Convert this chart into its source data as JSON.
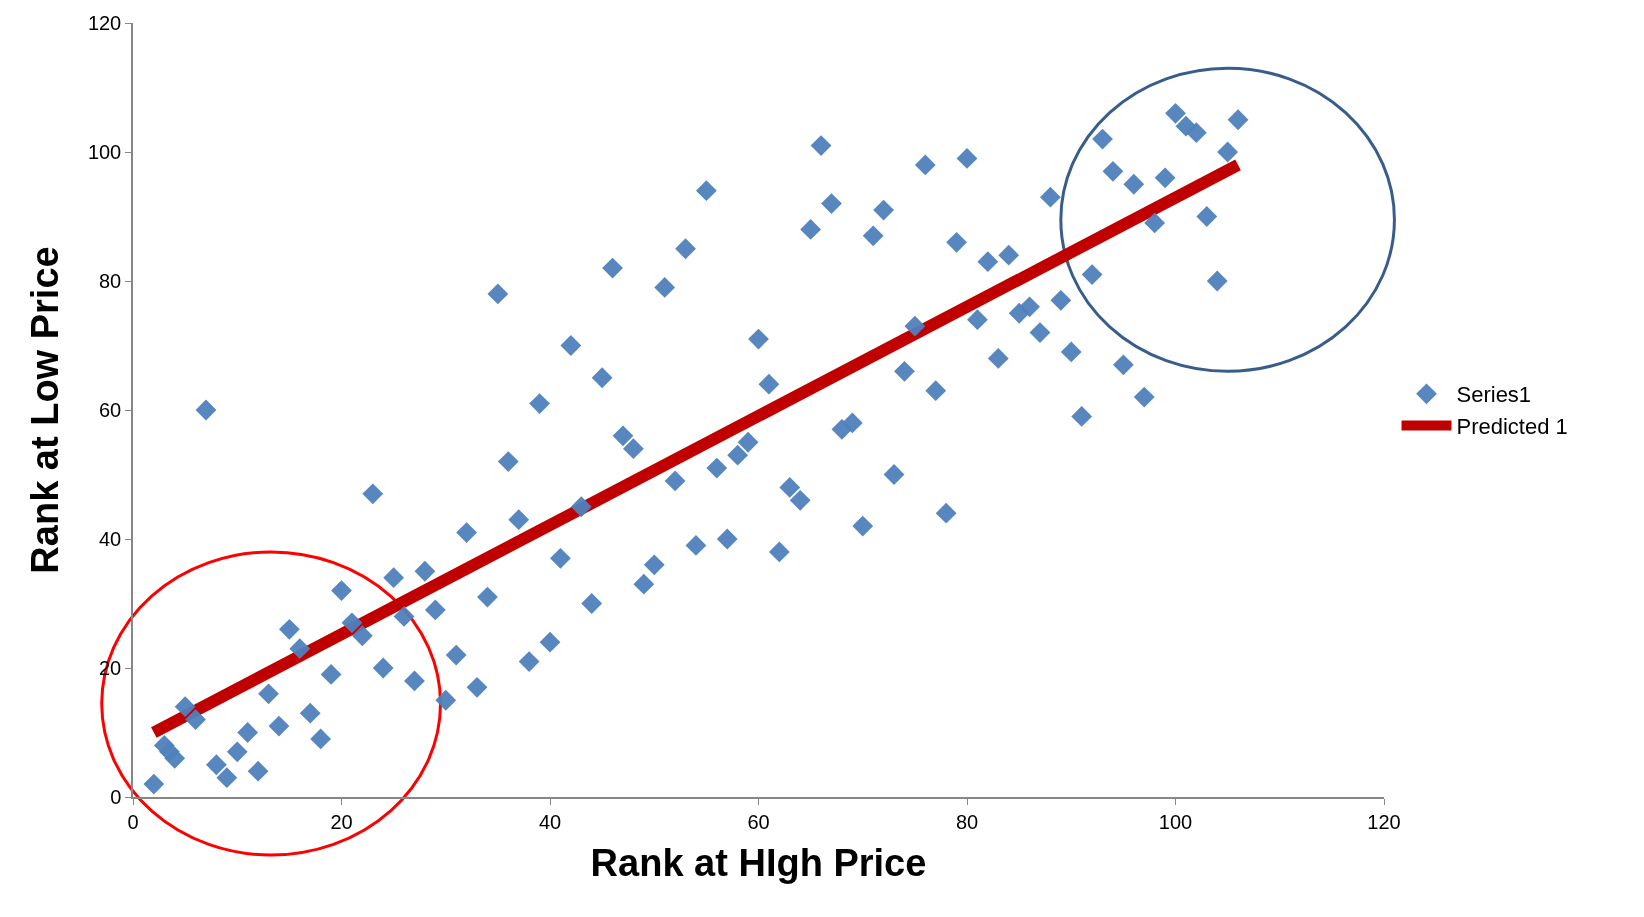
{
  "chart_data": {
    "type": "scatter",
    "xlabel": "Rank at HIgh Price",
    "ylabel": "Rank at Low Price",
    "xlim": [
      0,
      120
    ],
    "ylim": [
      0,
      120
    ],
    "xticks": [
      0,
      20,
      40,
      60,
      80,
      100,
      120
    ],
    "yticks": [
      0,
      20,
      40,
      60,
      80,
      100,
      120
    ],
    "grid": false,
    "legend": "right",
    "series": [
      {
        "name": "Series1",
        "marker": "diamond",
        "color": "#4f81bd",
        "x": [
          2,
          3,
          3.5,
          4,
          5,
          6,
          7,
          8,
          9,
          10,
          11,
          12,
          13,
          14,
          15,
          16,
          17,
          18,
          19,
          20,
          21,
          22,
          23,
          24,
          25,
          26,
          27,
          28,
          29,
          30,
          31,
          32,
          33,
          34,
          35,
          36,
          37,
          38,
          39,
          40,
          41,
          42,
          43,
          44,
          45,
          46,
          47,
          48,
          49,
          50,
          51,
          52,
          53,
          54,
          55,
          56,
          57,
          58,
          59,
          60,
          61,
          62,
          63,
          64,
          65,
          66,
          67,
          68,
          69,
          70,
          71,
          72,
          73,
          74,
          75,
          76,
          77,
          78,
          79,
          80,
          81,
          82,
          83,
          84,
          85,
          86,
          87,
          88,
          89,
          90,
          91,
          92,
          93,
          94,
          95,
          96,
          97,
          98,
          99,
          100,
          101,
          102,
          103,
          104,
          105,
          106
        ],
        "values": [
          2,
          8,
          7,
          6,
          14,
          12,
          60,
          5,
          3,
          7,
          10,
          4,
          16,
          11,
          26,
          23,
          13,
          9,
          19,
          32,
          27,
          25,
          47,
          20,
          34,
          28,
          18,
          35,
          29,
          15,
          22,
          41,
          17,
          31,
          78,
          52,
          43,
          21,
          61,
          24,
          37,
          70,
          45,
          30,
          65,
          82,
          56,
          54,
          33,
          36,
          79,
          49,
          85,
          39,
          94,
          51,
          40,
          53,
          55,
          71,
          64,
          38,
          48,
          46,
          88,
          101,
          92,
          57,
          58,
          42,
          87,
          91,
          50,
          66,
          73,
          98,
          63,
          44,
          86,
          99,
          74,
          83,
          68,
          84,
          75,
          76,
          72,
          93,
          77,
          69,
          59,
          81,
          102,
          97,
          67,
          95,
          62,
          89,
          96,
          106,
          104,
          103,
          90,
          80,
          100,
          105
        ]
      },
      {
        "name": "Predicted 1",
        "type": "line",
        "marker": "none",
        "line_style": "solid",
        "color": "#c00000",
        "x": [
          2,
          106
        ],
        "values": [
          10,
          98
        ]
      }
    ]
  }
}
